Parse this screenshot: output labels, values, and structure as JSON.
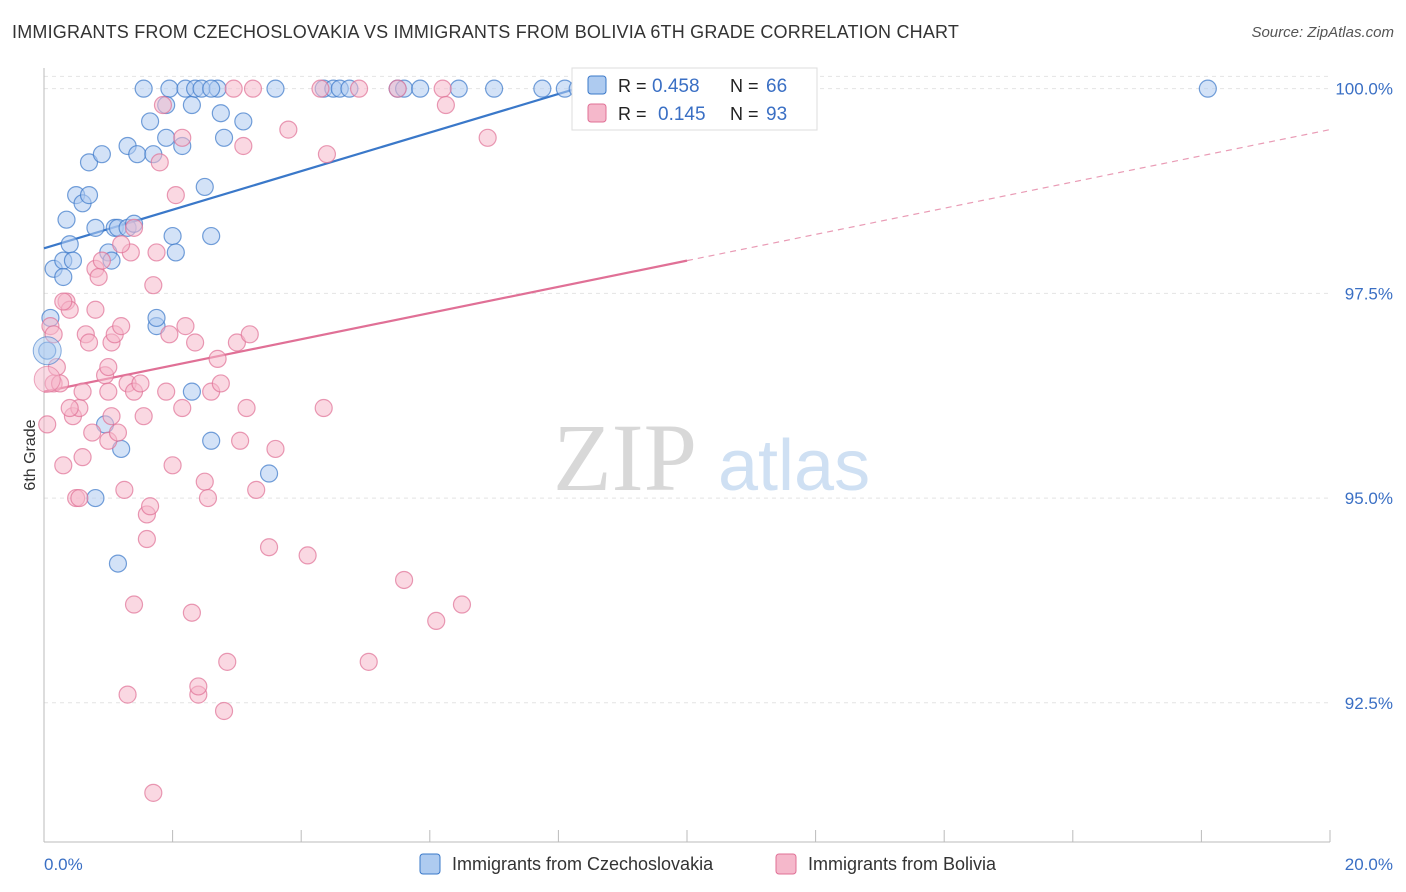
{
  "title": "IMMIGRANTS FROM CZECHOSLOVAKIA VS IMMIGRANTS FROM BOLIVIA 6TH GRADE CORRELATION CHART",
  "source": "Source: ZipAtlas.com",
  "watermark": {
    "zip": "ZIP",
    "atlas": "atlas"
  },
  "colors": {
    "blue": "#3a78c9",
    "blue_fill": "#aecbf0",
    "pink": "#e07096",
    "pink_fill": "#f5b8cb",
    "axis_text": "#3a6fc4"
  },
  "chart_data": {
    "type": "scatter",
    "ylabel": "6th Grade",
    "xlabel": "",
    "x_tick_labels": [
      "0.0%",
      "20.0%"
    ],
    "y_tick_labels": [
      "100.0%",
      "97.5%",
      "95.0%",
      "92.5%"
    ],
    "y_tick_values": [
      100.0,
      97.5,
      95.0,
      92.5
    ],
    "xlim": [
      0,
      20
    ],
    "ylim": [
      90.8,
      100.35
    ],
    "legend_position": "top-center",
    "stats": [
      {
        "r_label": "R =",
        "r": "0.458",
        "n_label": "N =",
        "n": "66"
      },
      {
        "r_label": "R =",
        "r": "0.145",
        "n_label": "N =",
        "n": "93"
      }
    ],
    "series": [
      {
        "name": "Immigrants from Czechoslovakia",
        "color": "blue",
        "trend": {
          "x": [
            0.0,
            8.7
          ],
          "y": [
            98.05,
            100.1
          ],
          "dashed_to": null
        },
        "points": [
          [
            0.05,
            96.8
          ],
          [
            0.1,
            97.2
          ],
          [
            0.15,
            97.8
          ],
          [
            0.3,
            97.9
          ],
          [
            0.3,
            97.7
          ],
          [
            0.4,
            98.1
          ],
          [
            0.35,
            98.4
          ],
          [
            0.45,
            97.9
          ],
          [
            0.5,
            98.7
          ],
          [
            0.6,
            98.6
          ],
          [
            0.7,
            99.1
          ],
          [
            0.7,
            98.7
          ],
          [
            0.8,
            98.3
          ],
          [
            0.9,
            99.2
          ],
          [
            0.95,
            95.9
          ],
          [
            1.0,
            98.0
          ],
          [
            1.05,
            97.9
          ],
          [
            1.1,
            98.3
          ],
          [
            1.15,
            98.3
          ],
          [
            1.2,
            95.6
          ],
          [
            1.3,
            98.3
          ],
          [
            1.3,
            99.3
          ],
          [
            1.4,
            98.35
          ],
          [
            1.45,
            99.2
          ],
          [
            1.55,
            100.0
          ],
          [
            1.65,
            99.6
          ],
          [
            1.7,
            99.2
          ],
          [
            1.75,
            97.1
          ],
          [
            1.75,
            97.2
          ],
          [
            1.9,
            99.4
          ],
          [
            1.95,
            100.0
          ],
          [
            2.0,
            98.2
          ],
          [
            2.05,
            98.0
          ],
          [
            2.15,
            99.3
          ],
          [
            2.2,
            100.0
          ],
          [
            2.3,
            99.8
          ],
          [
            2.35,
            100.0
          ],
          [
            2.45,
            100.0
          ],
          [
            2.5,
            98.8
          ],
          [
            2.6,
            98.2
          ],
          [
            2.7,
            100.0
          ],
          [
            2.75,
            99.7
          ],
          [
            2.8,
            99.4
          ],
          [
            3.1,
            99.6
          ],
          [
            3.6,
            100.0
          ],
          [
            4.35,
            100.0
          ],
          [
            4.5,
            100.0
          ],
          [
            4.6,
            100.0
          ],
          [
            4.75,
            100.0
          ],
          [
            5.5,
            100.0
          ],
          [
            5.6,
            100.0
          ],
          [
            5.85,
            100.0
          ],
          [
            6.45,
            100.0
          ],
          [
            7.0,
            100.0
          ],
          [
            7.75,
            100.0
          ],
          [
            8.1,
            100.0
          ],
          [
            8.3,
            100.0
          ],
          [
            8.6,
            100.0
          ],
          [
            18.1,
            100.0
          ],
          [
            0.8,
            95.0
          ],
          [
            1.15,
            94.2
          ],
          [
            2.3,
            96.3
          ],
          [
            2.6,
            95.7
          ],
          [
            3.5,
            95.3
          ],
          [
            1.9,
            99.8
          ],
          [
            2.6,
            100.0
          ]
        ]
      },
      {
        "name": "Immigrants from Bolivia",
        "color": "pink",
        "trend": {
          "x": [
            0.0,
            10.0
          ],
          "y": [
            96.3,
            97.9
          ],
          "dashed_to": {
            "x": 20.0,
            "y": 99.5
          }
        },
        "points": [
          [
            0.05,
            95.9
          ],
          [
            0.1,
            97.1
          ],
          [
            0.15,
            96.4
          ],
          [
            0.2,
            96.6
          ],
          [
            0.25,
            96.4
          ],
          [
            0.3,
            95.4
          ],
          [
            0.35,
            97.4
          ],
          [
            0.4,
            97.3
          ],
          [
            0.45,
            96.0
          ],
          [
            0.5,
            95.0
          ],
          [
            0.55,
            96.1
          ],
          [
            0.6,
            95.5
          ],
          [
            0.65,
            97.0
          ],
          [
            0.7,
            96.9
          ],
          [
            0.75,
            95.8
          ],
          [
            0.8,
            97.3
          ],
          [
            0.8,
            97.8
          ],
          [
            0.85,
            97.7
          ],
          [
            0.9,
            97.9
          ],
          [
            0.95,
            96.5
          ],
          [
            1.0,
            96.3
          ],
          [
            1.0,
            95.7
          ],
          [
            1.05,
            96.9
          ],
          [
            1.1,
            97.0
          ],
          [
            1.15,
            95.8
          ],
          [
            1.2,
            97.1
          ],
          [
            1.25,
            95.1
          ],
          [
            1.3,
            96.4
          ],
          [
            1.35,
            98.0
          ],
          [
            1.4,
            98.3
          ],
          [
            1.4,
            96.3
          ],
          [
            1.5,
            96.4
          ],
          [
            1.55,
            96.0
          ],
          [
            1.6,
            94.8
          ],
          [
            1.6,
            94.5
          ],
          [
            1.65,
            94.9
          ],
          [
            1.7,
            97.6
          ],
          [
            1.75,
            98.0
          ],
          [
            1.8,
            99.1
          ],
          [
            1.85,
            99.8
          ],
          [
            1.9,
            96.3
          ],
          [
            1.95,
            97.0
          ],
          [
            2.0,
            95.4
          ],
          [
            2.05,
            98.7
          ],
          [
            2.15,
            99.4
          ],
          [
            2.15,
            96.1
          ],
          [
            2.2,
            97.1
          ],
          [
            2.3,
            93.6
          ],
          [
            2.35,
            96.9
          ],
          [
            2.4,
            92.6
          ],
          [
            2.5,
            95.2
          ],
          [
            2.55,
            95.0
          ],
          [
            2.6,
            96.3
          ],
          [
            2.7,
            96.7
          ],
          [
            2.75,
            96.4
          ],
          [
            2.8,
            92.4
          ],
          [
            2.85,
            93.0
          ],
          [
            2.95,
            100.0
          ],
          [
            3.0,
            96.9
          ],
          [
            3.05,
            95.7
          ],
          [
            3.1,
            99.3
          ],
          [
            3.15,
            96.1
          ],
          [
            3.2,
            97.0
          ],
          [
            3.25,
            100.0
          ],
          [
            3.3,
            95.1
          ],
          [
            3.5,
            94.4
          ],
          [
            3.6,
            95.6
          ],
          [
            3.8,
            99.5
          ],
          [
            4.1,
            94.3
          ],
          [
            4.3,
            100.0
          ],
          [
            4.35,
            96.1
          ],
          [
            4.4,
            99.2
          ],
          [
            4.9,
            100.0
          ],
          [
            5.05,
            93.0
          ],
          [
            5.5,
            100.0
          ],
          [
            5.6,
            94.0
          ],
          [
            6.1,
            93.5
          ],
          [
            6.2,
            100.0
          ],
          [
            6.25,
            99.8
          ],
          [
            6.5,
            93.7
          ],
          [
            6.9,
            99.4
          ],
          [
            0.15,
            97.0
          ],
          [
            1.4,
            93.7
          ],
          [
            1.3,
            92.6
          ],
          [
            1.7,
            91.4
          ],
          [
            0.55,
            95.0
          ],
          [
            1.05,
            96.0
          ],
          [
            1.2,
            98.1
          ],
          [
            0.6,
            96.3
          ],
          [
            1.0,
            96.6
          ],
          [
            0.4,
            96.1
          ],
          [
            0.3,
            97.4
          ],
          [
            2.4,
            92.7
          ]
        ]
      }
    ]
  }
}
